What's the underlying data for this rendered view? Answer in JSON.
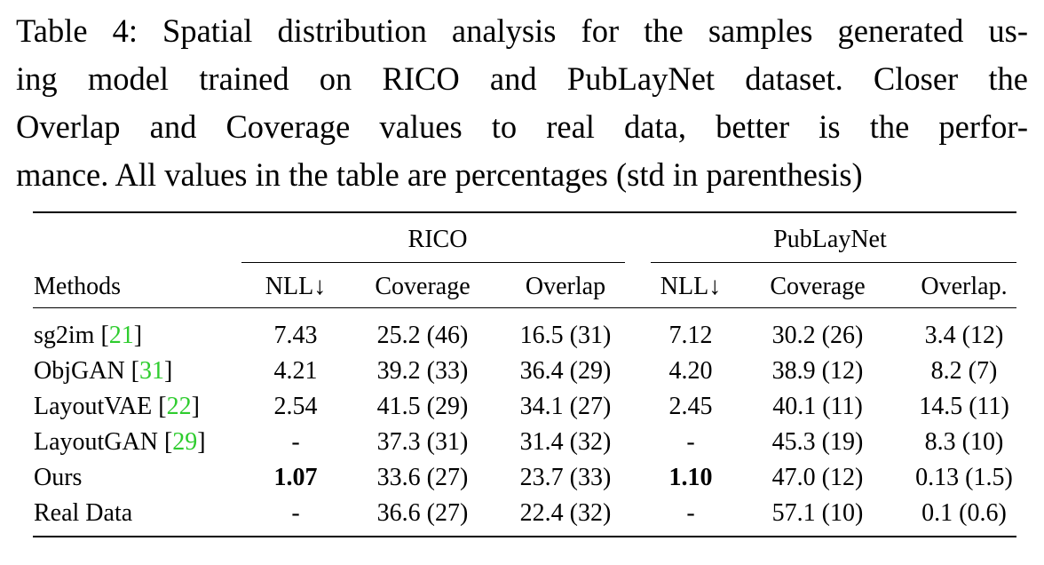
{
  "caption": {
    "lines": [
      "Table 4: Spatial distribution analysis for the samples generated us-",
      "ing model trained on RICO and PubLayNet dataset.  Closer the",
      "Overlap and Coverage values to real data, better is the perfor-",
      "mance. All values in the table are percentages (std in parenthesis)"
    ]
  },
  "table": {
    "group_headers": [
      "RICO",
      "PubLayNet"
    ],
    "columns": [
      "Methods",
      "NLL↓",
      "Coverage",
      "Overlap",
      "NLL↓",
      "Coverage",
      "Overlap."
    ],
    "rows": [
      {
        "method": "sg2im [",
        "ref": "21",
        "close": "]",
        "cells": [
          "7.43",
          "25.2 (46)",
          "16.5 (31)",
          "7.12",
          "30.2 (26)",
          "3.4 (12)"
        ]
      },
      {
        "method": "ObjGAN [",
        "ref": "31",
        "close": "]",
        "cells": [
          "4.21",
          "39.2 (33)",
          "36.4 (29)",
          "4.20",
          "38.9 (12)",
          "8.2 (7)"
        ]
      },
      {
        "method": "LayoutVAE [",
        "ref": "22",
        "close": "]",
        "cells": [
          "2.54",
          "41.5 (29)",
          "34.1 (27)",
          "2.45",
          "40.1 (11)",
          "14.5 (11)"
        ]
      },
      {
        "method": "LayoutGAN [",
        "ref": "29",
        "close": "]",
        "cells": [
          "-",
          "37.3 (31)",
          "31.4 (32)",
          "-",
          "45.3 (19)",
          "8.3 (10)"
        ]
      },
      {
        "method": "Ours",
        "ref": "",
        "close": "",
        "cells": [
          "1.07",
          "33.6 (27)",
          "23.7 (33)",
          "1.10",
          "47.0 (12)",
          "0.13 (1.5)"
        ]
      },
      {
        "method": "Real Data",
        "ref": "",
        "close": "",
        "cells": [
          "-",
          "36.6 (27)",
          "22.4 (32)",
          "-",
          "57.1 (10)",
          "0.1 (0.6)"
        ]
      }
    ],
    "bold_cells": [
      [
        4,
        0
      ],
      [
        4,
        3
      ]
    ]
  },
  "colors": {
    "reference_link": "#2ecc2e",
    "text": "#000000"
  }
}
